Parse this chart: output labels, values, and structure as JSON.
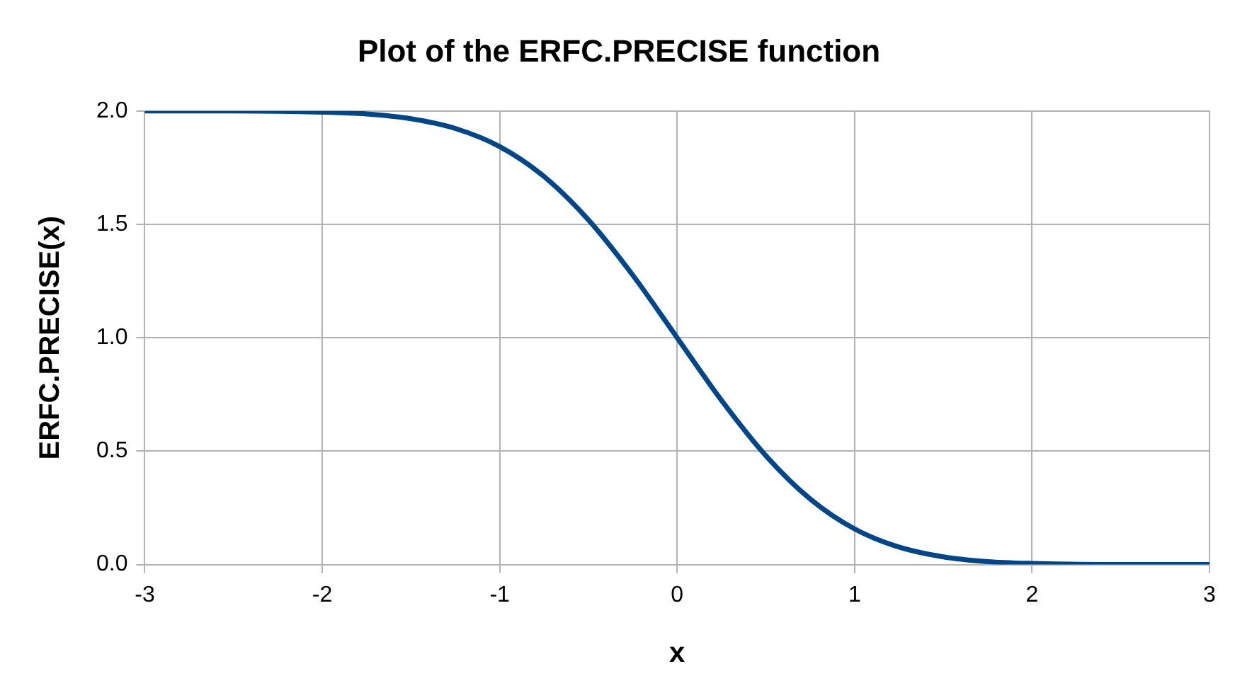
{
  "chart_data": {
    "type": "line",
    "title": "Plot of the ERFC.PRECISE function",
    "xlabel": "x",
    "ylabel": "ERFC.PRECISE(x)",
    "x": [
      -3,
      -2.5,
      -2,
      -1.75,
      -1.5,
      -1.25,
      -1,
      -0.75,
      -0.5,
      -0.25,
      0,
      0.25,
      0.5,
      0.75,
      1,
      1.25,
      1.5,
      1.75,
      2,
      2.5,
      3
    ],
    "series": [
      {
        "color": "#004586",
        "values": [
          2.0,
          2.0,
          1.995,
          1.987,
          1.966,
          1.923,
          1.843,
          1.711,
          1.52,
          1.276,
          1.0,
          0.724,
          0.48,
          0.289,
          0.157,
          0.077,
          0.034,
          0.013,
          0.005,
          0.0,
          0.0
        ]
      }
    ],
    "xlim": [
      -3,
      3
    ],
    "xticks": [
      -3,
      -2,
      -1,
      0,
      1,
      2,
      3
    ],
    "ylim": [
      0,
      2
    ],
    "yticks": [
      {
        "value": 0,
        "label": "0.0"
      },
      {
        "value": 0.5,
        "label": "0.5"
      },
      {
        "value": 1,
        "label": "1.0"
      },
      {
        "value": 1.5,
        "label": "1.5"
      },
      {
        "value": 2,
        "label": "2.0"
      }
    ],
    "grid": true,
    "legend": false,
    "marker": "none",
    "line_style": "solid"
  }
}
